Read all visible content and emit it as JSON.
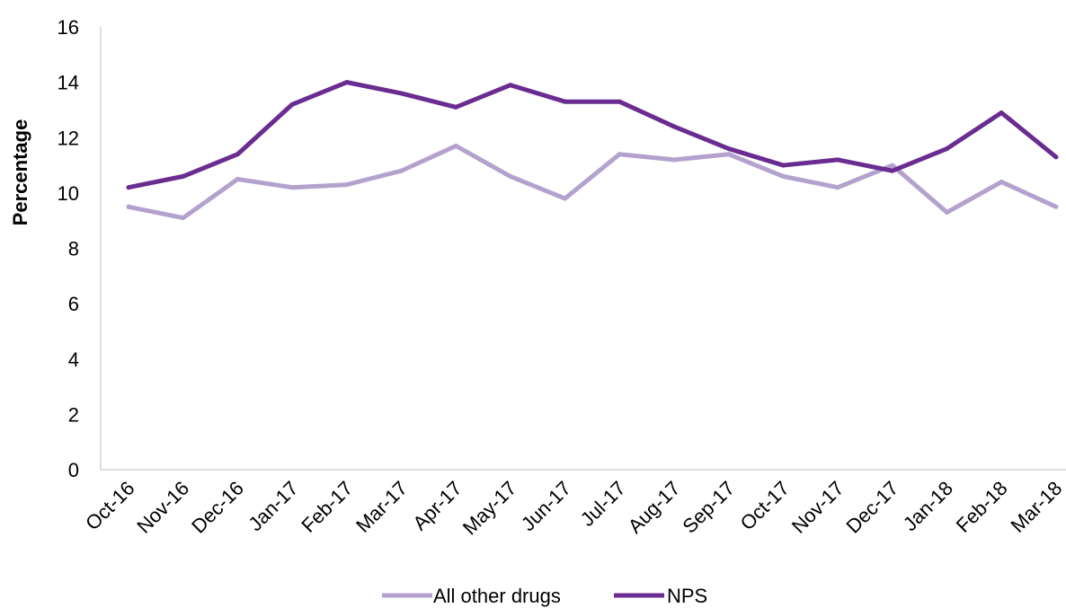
{
  "chart_data": {
    "type": "line",
    "title": "",
    "xlabel": "",
    "ylabel": "Percentage",
    "ylim": [
      0,
      16
    ],
    "yticks": [
      0,
      2,
      4,
      6,
      8,
      10,
      12,
      14,
      16
    ],
    "grid": false,
    "legend_position": "bottom",
    "categories": [
      "Oct-16",
      "Nov-16",
      "Dec-16",
      "Jan-17",
      "Feb-17",
      "Mar-17",
      "Apr-17",
      "May-17",
      "Jun-17",
      "Jul-17",
      "Aug-17",
      "Sep-17",
      "Oct-17",
      "Nov-17",
      "Dec-17",
      "Jan-18",
      "Feb-18",
      "Mar-18"
    ],
    "series": [
      {
        "name": "All other drugs",
        "color": "#b3a2cd",
        "values": [
          9.5,
          9.1,
          10.5,
          10.2,
          10.3,
          10.8,
          11.7,
          10.6,
          9.8,
          11.4,
          11.2,
          11.4,
          10.6,
          10.2,
          11.0,
          9.3,
          10.4,
          9.5
        ]
      },
      {
        "name": "NPS",
        "color": "#6a2c91",
        "values": [
          10.2,
          10.6,
          11.4,
          13.2,
          14.0,
          13.6,
          13.1,
          13.9,
          13.3,
          13.3,
          12.4,
          11.6,
          11.0,
          11.2,
          10.8,
          11.6,
          12.9,
          11.3
        ]
      }
    ]
  }
}
